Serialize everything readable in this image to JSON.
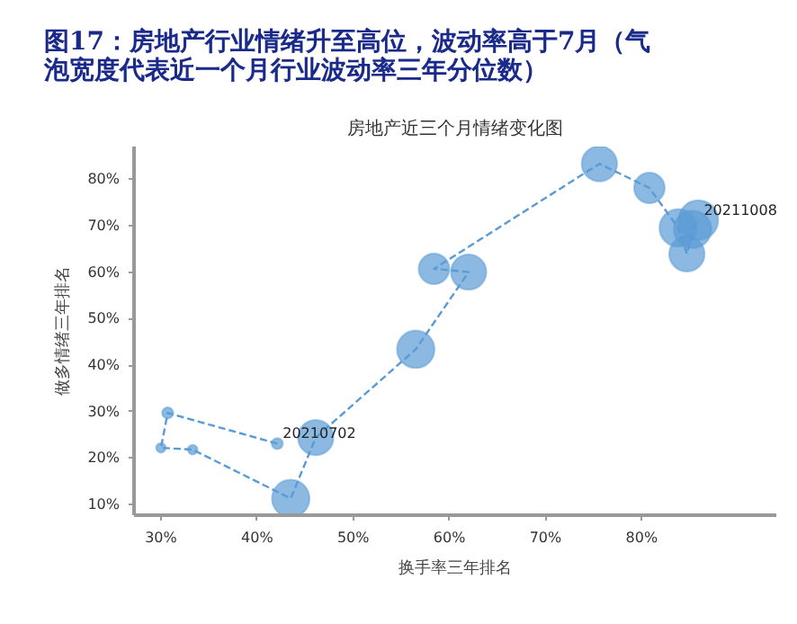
{
  "chart_data": {
    "type": "bubble",
    "title": "图17：房地产行业情绪升至高位，波动率高于7月（气泡宽度代表近一个月行业波动率三年分位数）",
    "subtitle": "房地产近三个月情绪变化图",
    "xlabel": "换手率三年排名",
    "ylabel": "做多情绪三年排名",
    "x": [
      42.1,
      30.7,
      30.0,
      33.3,
      43.5,
      46.1,
      56.5,
      62.0,
      58.4,
      75.6,
      80.8,
      83.8,
      84.7,
      85.3,
      85.9
    ],
    "series": [
      {
        "color": "#5b9bd5",
        "values": [
          23.1,
          29.7,
          22.2,
          21.8,
          11.3,
          24.4,
          43.4,
          60.0,
          60.7,
          83.3,
          78.1,
          69.5,
          63.9,
          69.2,
          71.2
        ],
        "sizes": [
          0.08,
          0.08,
          0.06,
          0.06,
          0.9,
          0.8,
          0.9,
          0.8,
          0.6,
          0.8,
          0.6,
          0.9,
          0.8,
          0.9,
          1
        ]
      },
      {
        "type": "line",
        "marker": "none",
        "color": "#5b9bd5",
        "values": [
          23.1,
          29.7,
          22.2,
          21.8,
          11.3,
          24.4,
          43.4,
          60.0,
          60.7,
          83.3,
          78.1,
          69.5,
          63.9,
          69.2,
          71.2
        ]
      }
    ],
    "xlim": [
      27.2,
      94
    ],
    "ylim": [
      7.7,
      87
    ],
    "xticks": [
      {
        "value": 30,
        "label": "30%"
      },
      {
        "value": 40,
        "label": "40%"
      },
      {
        "value": 50,
        "label": "50%"
      },
      {
        "value": 60,
        "label": "60%"
      },
      {
        "value": 70,
        "label": "70%"
      },
      {
        "value": 80,
        "label": "80%"
      }
    ],
    "yticks": [
      {
        "value": 10,
        "label": "10%"
      },
      {
        "value": 20,
        "label": "20%"
      },
      {
        "value": 30,
        "label": "30%"
      },
      {
        "value": 40,
        "label": "40%"
      },
      {
        "value": 50,
        "label": "50%"
      },
      {
        "value": 60,
        "label": "60%"
      },
      {
        "value": 70,
        "label": "70%"
      },
      {
        "value": 80,
        "label": "80%"
      }
    ],
    "line_style": "dashed",
    "marker": "circle",
    "grid": false,
    "annotations": [
      {
        "text": "20210702",
        "x": 42.1,
        "y": 23.1
      },
      {
        "text": "20211008",
        "x": 85.9,
        "y": 71.2
      }
    ]
  }
}
